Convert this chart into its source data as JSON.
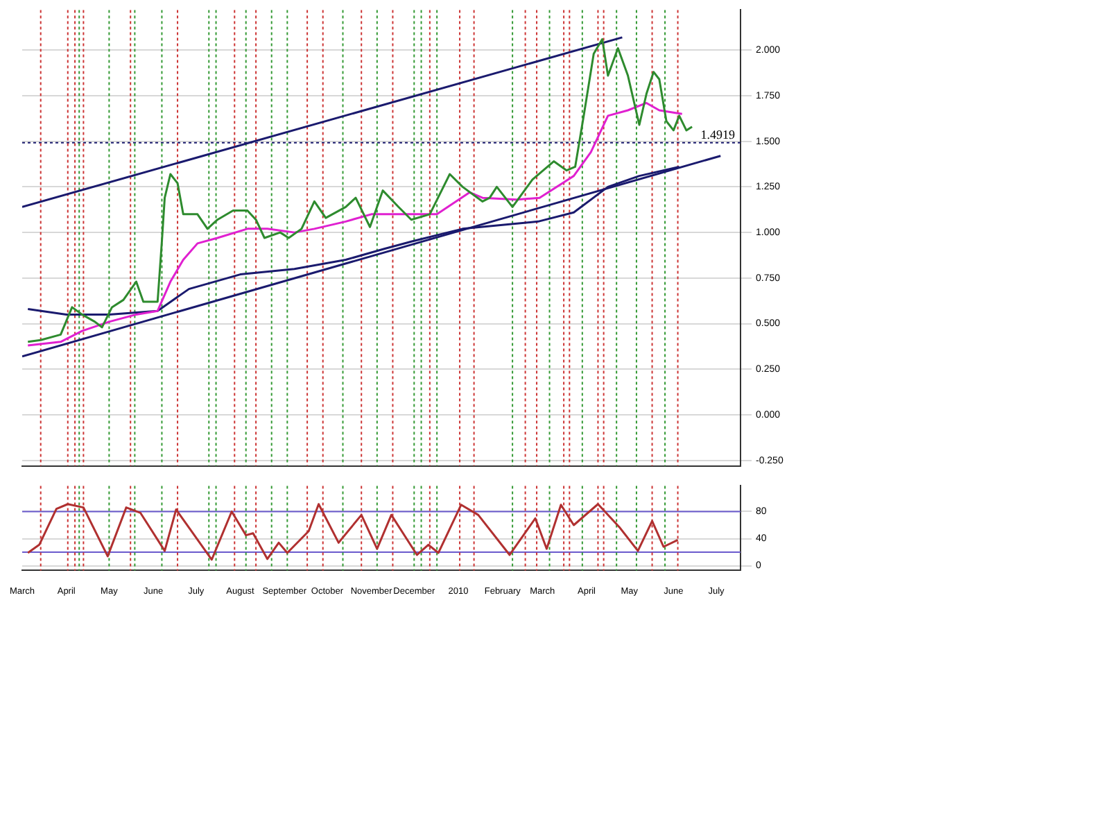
{
  "chart_data": [
    {
      "type": "line",
      "xlim": [
        "2009-03-01",
        "2010-07-18"
      ],
      "ylim": [
        -0.28,
        2.22
      ],
      "yticks": [
        {
          "value": -0.25,
          "label": "-0.250"
        },
        {
          "value": 0,
          "label": "0.000"
        },
        {
          "value": 0.25,
          "label": "0.250"
        },
        {
          "value": 0.5,
          "label": "0.500"
        },
        {
          "value": 0.75,
          "label": "0.750"
        },
        {
          "value": 1,
          "label": "1.000"
        },
        {
          "value": 1.25,
          "label": "1.250"
        },
        {
          "value": 1.5,
          "label": "1.500"
        },
        {
          "value": 1.75,
          "label": "1.750"
        },
        {
          "value": 2,
          "label": "2.000"
        }
      ],
      "xticks": [
        {
          "value": "2009-04-01",
          "label": null
        },
        {
          "value": "2009-05-01",
          "label": null
        },
        {
          "value": "2009-06-01",
          "label": null
        },
        {
          "value": "2009-07-01",
          "label": null
        },
        {
          "value": "2009-08-01",
          "label": null
        },
        {
          "value": "2009-09-01",
          "label": null
        },
        {
          "value": "2009-10-01",
          "label": null
        },
        {
          "value": "2009-11-01",
          "label": null
        },
        {
          "value": "2009-12-01",
          "label": null
        },
        {
          "value": "2010-01-01",
          "label": null
        },
        {
          "value": "2010-02-01",
          "label": null
        },
        {
          "value": "2010-03-01",
          "label": null
        },
        {
          "value": "2010-04-01",
          "label": null
        },
        {
          "value": "2010-05-01",
          "label": null
        },
        {
          "value": "2010-06-01",
          "label": null
        },
        {
          "value": "2010-07-01",
          "label": null
        }
      ],
      "tick_labels": "y",
      "grid": "y",
      "legend": false,
      "marker": "none",
      "series": [
        {
          "color": "#2e8b2e",
          "x": [
            "2009-03-05",
            "2009-03-14",
            "2009-03-28",
            "2009-04-05",
            "2009-04-12",
            "2009-04-21",
            "2009-04-26",
            "2009-05-03",
            "2009-05-11",
            "2009-05-20",
            "2009-05-25",
            "2009-06-04",
            "2009-06-07",
            "2009-06-09",
            "2009-06-13",
            "2009-06-18",
            "2009-06-22",
            "2009-07-02",
            "2009-07-09",
            "2009-07-16",
            "2009-07-27",
            "2009-08-06",
            "2009-08-12",
            "2009-08-18",
            "2009-08-29",
            "2009-09-04",
            "2009-09-13",
            "2009-09-22",
            "2009-09-30",
            "2009-10-14",
            "2009-10-21",
            "2009-10-31",
            "2009-11-09",
            "2009-11-20",
            "2009-11-29",
            "2009-12-12",
            "2009-12-26",
            "2010-01-04",
            "2010-01-18",
            "2010-01-23",
            "2010-01-28",
            "2010-02-08",
            "2010-02-22",
            "2010-03-09",
            "2010-03-18",
            "2010-03-24",
            "2010-03-30",
            "2010-04-06",
            "2010-04-12",
            "2010-04-16",
            "2010-04-23",
            "2010-04-30",
            "2010-05-08",
            "2010-05-13",
            "2010-05-18",
            "2010-05-22",
            "2010-05-27",
            "2010-06-01",
            "2010-06-05",
            "2010-06-10",
            "2010-06-14"
          ],
          "values": [
            0.4,
            0.41,
            0.44,
            0.59,
            0.55,
            0.51,
            0.48,
            0.59,
            0.63,
            0.73,
            0.62,
            0.62,
            0.95,
            1.19,
            1.32,
            1.27,
            1.1,
            1.1,
            1.02,
            1.07,
            1.12,
            1.12,
            1.07,
            0.97,
            1.0,
            0.97,
            1.02,
            1.17,
            1.08,
            1.14,
            1.19,
            1.03,
            1.23,
            1.14,
            1.07,
            1.1,
            1.32,
            1.25,
            1.17,
            1.19,
            1.25,
            1.14,
            1.29,
            1.39,
            1.34,
            1.36,
            1.64,
            1.98,
            2.06,
            1.86,
            2.01,
            1.86,
            1.59,
            1.76,
            1.88,
            1.84,
            1.61,
            1.56,
            1.64,
            1.56,
            1.58
          ]
        },
        {
          "color": "#e020d0",
          "x": [
            "2009-03-05",
            "2009-03-28",
            "2009-04-12",
            "2009-05-01",
            "2009-05-20",
            "2009-06-04",
            "2009-06-13",
            "2009-06-22",
            "2009-07-02",
            "2009-07-16",
            "2009-08-06",
            "2009-08-20",
            "2009-09-08",
            "2009-09-22",
            "2009-10-14",
            "2009-11-01",
            "2009-11-29",
            "2009-12-17",
            "2010-01-09",
            "2010-01-18",
            "2010-02-11",
            "2010-02-27",
            "2010-03-23",
            "2010-04-04",
            "2010-04-16",
            "2010-04-30",
            "2010-05-13",
            "2010-05-22",
            "2010-06-07"
          ],
          "values": [
            0.38,
            0.4,
            0.46,
            0.51,
            0.55,
            0.57,
            0.73,
            0.85,
            0.94,
            0.97,
            1.02,
            1.02,
            1.0,
            1.02,
            1.06,
            1.1,
            1.1,
            1.1,
            1.22,
            1.19,
            1.18,
            1.19,
            1.31,
            1.44,
            1.64,
            1.67,
            1.71,
            1.67,
            1.65
          ]
        },
        {
          "color": "#1a1a6e",
          "x": [
            "2009-03-05",
            "2009-04-01",
            "2009-05-01",
            "2009-06-04",
            "2009-06-26",
            "2009-08-01",
            "2009-09-08",
            "2009-10-14",
            "2009-11-10",
            "2009-11-29",
            "2010-01-04",
            "2010-02-26",
            "2010-03-23",
            "2010-04-16",
            "2010-05-08",
            "2010-06-05"
          ],
          "values": [
            0.58,
            0.55,
            0.55,
            0.57,
            0.69,
            0.77,
            0.8,
            0.85,
            0.91,
            0.95,
            1.02,
            1.06,
            1.11,
            1.25,
            1.31,
            1.36
          ]
        },
        {
          "color": "#1a1a6e",
          "x": [
            "2009-03-01",
            "2010-04-26"
          ],
          "values": [
            1.14,
            2.07
          ]
        },
        {
          "color": "#1a1a6e",
          "x": [
            "2009-03-01",
            "2010-07-04"
          ],
          "values": [
            0.32,
            1.42
          ]
        }
      ],
      "ref_lines": [
        {
          "axis": "y",
          "value": 1.4919,
          "label": "1.4919",
          "color": "#1a1a6e",
          "line_style": "dotted"
        },
        {
          "axis": "x",
          "value": "2009-03-14",
          "color": "#cc3333",
          "line_style": "dotted"
        },
        {
          "axis": "x",
          "value": "2009-04-02",
          "color": "#cc3333",
          "line_style": "dotted"
        },
        {
          "axis": "x",
          "value": "2009-04-07",
          "color": "#cc3333",
          "line_style": "dotted"
        },
        {
          "axis": "x",
          "value": "2009-04-10",
          "color": "#339933",
          "line_style": "dotted"
        },
        {
          "axis": "x",
          "value": "2009-04-13",
          "color": "#cc3333",
          "line_style": "dotted"
        },
        {
          "axis": "x",
          "value": "2009-05-01",
          "color": "#339933",
          "line_style": "dotted"
        },
        {
          "axis": "x",
          "value": "2009-05-16",
          "color": "#cc3333",
          "line_style": "dotted"
        },
        {
          "axis": "x",
          "value": "2009-05-19",
          "color": "#339933",
          "line_style": "dotted"
        },
        {
          "axis": "x",
          "value": "2009-06-07",
          "color": "#339933",
          "line_style": "dotted"
        },
        {
          "axis": "x",
          "value": "2009-06-18",
          "color": "#cc3333",
          "line_style": "dotted"
        },
        {
          "axis": "x",
          "value": "2009-07-10",
          "color": "#339933",
          "line_style": "dotted"
        },
        {
          "axis": "x",
          "value": "2009-07-15",
          "color": "#339933",
          "line_style": "dotted"
        },
        {
          "axis": "x",
          "value": "2009-07-28",
          "color": "#cc3333",
          "line_style": "dotted"
        },
        {
          "axis": "x",
          "value": "2009-08-05",
          "color": "#339933",
          "line_style": "dotted"
        },
        {
          "axis": "x",
          "value": "2009-08-12",
          "color": "#cc3333",
          "line_style": "dotted"
        },
        {
          "axis": "x",
          "value": "2009-08-23",
          "color": "#339933",
          "line_style": "dotted"
        },
        {
          "axis": "x",
          "value": "2009-09-03",
          "color": "#339933",
          "line_style": "dotted"
        },
        {
          "axis": "x",
          "value": "2009-09-17",
          "color": "#cc3333",
          "line_style": "dotted"
        },
        {
          "axis": "x",
          "value": "2009-09-28",
          "color": "#cc3333",
          "line_style": "dotted"
        },
        {
          "axis": "x",
          "value": "2009-10-12",
          "color": "#339933",
          "line_style": "dotted"
        },
        {
          "axis": "x",
          "value": "2009-10-25",
          "color": "#cc3333",
          "line_style": "dotted"
        },
        {
          "axis": "x",
          "value": "2009-11-05",
          "color": "#339933",
          "line_style": "dotted"
        },
        {
          "axis": "x",
          "value": "2009-11-16",
          "color": "#cc3333",
          "line_style": "dotted"
        },
        {
          "axis": "x",
          "value": "2009-12-01",
          "color": "#339933",
          "line_style": "dotted"
        },
        {
          "axis": "x",
          "value": "2009-12-06",
          "color": "#339933",
          "line_style": "dotted"
        },
        {
          "axis": "x",
          "value": "2009-12-12",
          "color": "#cc3333",
          "line_style": "dotted"
        },
        {
          "axis": "x",
          "value": "2009-12-17",
          "color": "#339933",
          "line_style": "dotted"
        },
        {
          "axis": "x",
          "value": "2010-01-02",
          "color": "#cc3333",
          "line_style": "dotted"
        },
        {
          "axis": "x",
          "value": "2010-01-12",
          "color": "#cc3333",
          "line_style": "dotted"
        },
        {
          "axis": "x",
          "value": "2010-02-08",
          "color": "#339933",
          "line_style": "dotted"
        },
        {
          "axis": "x",
          "value": "2010-02-17",
          "color": "#cc3333",
          "line_style": "dotted"
        },
        {
          "axis": "x",
          "value": "2010-02-25",
          "color": "#cc3333",
          "line_style": "dotted"
        },
        {
          "axis": "x",
          "value": "2010-03-06",
          "color": "#339933",
          "line_style": "dotted"
        },
        {
          "axis": "x",
          "value": "2010-03-16",
          "color": "#cc3333",
          "line_style": "dotted"
        },
        {
          "axis": "x",
          "value": "2010-03-20",
          "color": "#cc3333",
          "line_style": "dotted"
        },
        {
          "axis": "x",
          "value": "2010-03-29",
          "color": "#339933",
          "line_style": "dotted"
        },
        {
          "axis": "x",
          "value": "2010-04-09",
          "color": "#cc3333",
          "line_style": "dotted"
        },
        {
          "axis": "x",
          "value": "2010-04-13",
          "color": "#cc3333",
          "line_style": "dotted"
        },
        {
          "axis": "x",
          "value": "2010-04-22",
          "color": "#339933",
          "line_style": "dotted"
        },
        {
          "axis": "x",
          "value": "2010-05-06",
          "color": "#339933",
          "line_style": "dotted"
        },
        {
          "axis": "x",
          "value": "2010-05-17",
          "color": "#cc3333",
          "line_style": "dotted"
        },
        {
          "axis": "x",
          "value": "2010-05-26",
          "color": "#339933",
          "line_style": "dotted"
        },
        {
          "axis": "x",
          "value": "2010-06-04",
          "color": "#cc3333",
          "line_style": "dotted"
        }
      ]
    },
    {
      "type": "line",
      "xlim": [
        "2009-03-01",
        "2010-07-18"
      ],
      "ylim": [
        -7,
        118
      ],
      "yticks": [
        0,
        40,
        80
      ],
      "xticks": [
        {
          "value": "2009-03-01",
          "label": "March"
        },
        {
          "value": "2009-04-01",
          "label": "April"
        },
        {
          "value": "2009-05-01",
          "label": "May"
        },
        {
          "value": "2009-06-01",
          "label": "June"
        },
        {
          "value": "2009-07-01",
          "label": "July"
        },
        {
          "value": "2009-08-01",
          "label": "August"
        },
        {
          "value": "2009-09-01",
          "label": "September"
        },
        {
          "value": "2009-10-01",
          "label": "October"
        },
        {
          "value": "2009-11-01",
          "label": "November"
        },
        {
          "value": "2009-12-01",
          "label": "December"
        },
        {
          "value": "2010-01-01",
          "label": "2010"
        },
        {
          "value": "2010-02-01",
          "label": "February"
        },
        {
          "value": "2010-03-01",
          "label": "March"
        },
        {
          "value": "2010-04-01",
          "label": "April"
        },
        {
          "value": "2010-05-01",
          "label": "May"
        },
        {
          "value": "2010-06-01",
          "label": "June"
        },
        {
          "value": "2010-07-01",
          "label": "July"
        }
      ],
      "grid": "y",
      "legend": false,
      "marker": "none",
      "series": [
        {
          "color": "#b03030",
          "x": [
            "2009-03-05",
            "2009-03-13",
            "2009-03-25",
            "2009-04-02",
            "2009-04-13",
            "2009-04-30",
            "2009-05-13",
            "2009-05-23",
            "2009-06-09",
            "2009-06-17",
            "2009-07-12",
            "2009-07-26",
            "2009-08-05",
            "2009-08-10",
            "2009-08-20",
            "2009-08-28",
            "2009-09-03",
            "2009-09-18",
            "2009-09-25",
            "2009-10-09",
            "2009-10-25",
            "2009-11-05",
            "2009-11-15",
            "2009-12-03",
            "2009-12-11",
            "2009-12-18",
            "2010-01-03",
            "2010-01-15",
            "2010-02-06",
            "2010-02-24",
            "2010-03-04",
            "2010-03-14",
            "2010-03-23",
            "2010-04-09",
            "2010-04-24",
            "2010-05-07",
            "2010-05-17",
            "2010-05-25",
            "2010-06-04"
          ],
          "values": [
            19,
            31,
            84,
            91,
            86,
            14,
            86,
            78,
            22,
            83,
            9,
            80,
            45,
            48,
            10,
            34,
            19,
            51,
            91,
            34,
            75,
            25,
            75,
            16,
            31,
            19,
            90,
            75,
            16,
            70,
            25,
            90,
            60,
            91,
            57,
            22,
            66,
            28,
            38
          ]
        }
      ],
      "ref_lines": [
        {
          "axis": "y",
          "value": 80,
          "color": "#6a5acd"
        },
        {
          "axis": "y",
          "value": 20,
          "color": "#6a5acd"
        },
        {
          "axis": "x",
          "value": "2009-03-14",
          "color": "#cc3333",
          "line_style": "dotted"
        },
        {
          "axis": "x",
          "value": "2009-04-02",
          "color": "#cc3333",
          "line_style": "dotted"
        },
        {
          "axis": "x",
          "value": "2009-04-07",
          "color": "#cc3333",
          "line_style": "dotted"
        },
        {
          "axis": "x",
          "value": "2009-04-10",
          "color": "#339933",
          "line_style": "dotted"
        },
        {
          "axis": "x",
          "value": "2009-04-13",
          "color": "#cc3333",
          "line_style": "dotted"
        },
        {
          "axis": "x",
          "value": "2009-05-01",
          "color": "#339933",
          "line_style": "dotted"
        },
        {
          "axis": "x",
          "value": "2009-05-16",
          "color": "#cc3333",
          "line_style": "dotted"
        },
        {
          "axis": "x",
          "value": "2009-05-19",
          "color": "#339933",
          "line_style": "dotted"
        },
        {
          "axis": "x",
          "value": "2009-06-07",
          "color": "#339933",
          "line_style": "dotted"
        },
        {
          "axis": "x",
          "value": "2009-06-18",
          "color": "#cc3333",
          "line_style": "dotted"
        },
        {
          "axis": "x",
          "value": "2009-07-10",
          "color": "#339933",
          "line_style": "dotted"
        },
        {
          "axis": "x",
          "value": "2009-07-15",
          "color": "#339933",
          "line_style": "dotted"
        },
        {
          "axis": "x",
          "value": "2009-07-28",
          "color": "#cc3333",
          "line_style": "dotted"
        },
        {
          "axis": "x",
          "value": "2009-08-05",
          "color": "#339933",
          "line_style": "dotted"
        },
        {
          "axis": "x",
          "value": "2009-08-12",
          "color": "#cc3333",
          "line_style": "dotted"
        },
        {
          "axis": "x",
          "value": "2009-08-23",
          "color": "#339933",
          "line_style": "dotted"
        },
        {
          "axis": "x",
          "value": "2009-09-03",
          "color": "#339933",
          "line_style": "dotted"
        },
        {
          "axis": "x",
          "value": "2009-09-17",
          "color": "#cc3333",
          "line_style": "dotted"
        },
        {
          "axis": "x",
          "value": "2009-09-28",
          "color": "#cc3333",
          "line_style": "dotted"
        },
        {
          "axis": "x",
          "value": "2009-10-12",
          "color": "#339933",
          "line_style": "dotted"
        },
        {
          "axis": "x",
          "value": "2009-10-25",
          "color": "#cc3333",
          "line_style": "dotted"
        },
        {
          "axis": "x",
          "value": "2009-11-05",
          "color": "#339933",
          "line_style": "dotted"
        },
        {
          "axis": "x",
          "value": "2009-11-16",
          "color": "#cc3333",
          "line_style": "dotted"
        },
        {
          "axis": "x",
          "value": "2009-12-01",
          "color": "#339933",
          "line_style": "dotted"
        },
        {
          "axis": "x",
          "value": "2009-12-06",
          "color": "#339933",
          "line_style": "dotted"
        },
        {
          "axis": "x",
          "value": "2009-12-12",
          "color": "#cc3333",
          "line_style": "dotted"
        },
        {
          "axis": "x",
          "value": "2009-12-17",
          "color": "#339933",
          "line_style": "dotted"
        },
        {
          "axis": "x",
          "value": "2010-01-02",
          "color": "#cc3333",
          "line_style": "dotted"
        },
        {
          "axis": "x",
          "value": "2010-01-12",
          "color": "#cc3333",
          "line_style": "dotted"
        },
        {
          "axis": "x",
          "value": "2010-02-08",
          "color": "#339933",
          "line_style": "dotted"
        },
        {
          "axis": "x",
          "value": "2010-02-17",
          "color": "#cc3333",
          "line_style": "dotted"
        },
        {
          "axis": "x",
          "value": "2010-02-25",
          "color": "#cc3333",
          "line_style": "dotted"
        },
        {
          "axis": "x",
          "value": "2010-03-06",
          "color": "#339933",
          "line_style": "dotted"
        },
        {
          "axis": "x",
          "value": "2010-03-16",
          "color": "#cc3333",
          "line_style": "dotted"
        },
        {
          "axis": "x",
          "value": "2010-03-20",
          "color": "#cc3333",
          "line_style": "dotted"
        },
        {
          "axis": "x",
          "value": "2010-03-29",
          "color": "#339933",
          "line_style": "dotted"
        },
        {
          "axis": "x",
          "value": "2010-04-09",
          "color": "#cc3333",
          "line_style": "dotted"
        },
        {
          "axis": "x",
          "value": "2010-04-13",
          "color": "#cc3333",
          "line_style": "dotted"
        },
        {
          "axis": "x",
          "value": "2010-04-22",
          "color": "#339933",
          "line_style": "dotted"
        },
        {
          "axis": "x",
          "value": "2010-05-06",
          "color": "#339933",
          "line_style": "dotted"
        },
        {
          "axis": "x",
          "value": "2010-05-17",
          "color": "#cc3333",
          "line_style": "dotted"
        },
        {
          "axis": "x",
          "value": "2010-05-26",
          "color": "#339933",
          "line_style": "dotted"
        },
        {
          "axis": "x",
          "value": "2010-06-04",
          "color": "#cc3333",
          "line_style": "dotted"
        }
      ]
    }
  ]
}
